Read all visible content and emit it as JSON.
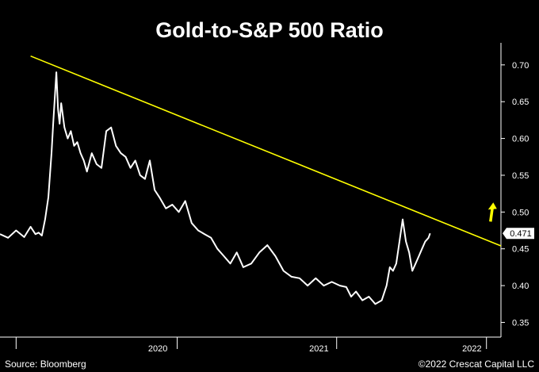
{
  "chart_data": {
    "type": "line",
    "title": "Gold-to-S&P 500 Ratio",
    "xlabel": "",
    "ylabel": "",
    "ylim": [
      0.33,
      0.73
    ],
    "y_ticks": [
      "0.70",
      "0.65",
      "0.60",
      "0.55",
      "0.50",
      "0.45",
      "0.40",
      "0.35"
    ],
    "y_tick_values": [
      0.7,
      0.65,
      0.6,
      0.55,
      0.5,
      0.45,
      0.4,
      0.35
    ],
    "x_labels": [
      "2020",
      "2021",
      "2022"
    ],
    "x_label_positions": [
      2020.45,
      2021.45,
      2022.4
    ],
    "x_range": [
      2019.47,
      2022.58
    ],
    "year_boundaries": [
      2019.57,
      2020.57,
      2021.56,
      2022.49
    ],
    "series": [
      {
        "name": "Gold-to-S&P 500 Ratio",
        "color": "#ffffff",
        "x": [
          2019.47,
          2019.52,
          2019.57,
          2019.62,
          2019.66,
          2019.69,
          2019.71,
          2019.73,
          2019.75,
          2019.77,
          2019.79,
          2019.8,
          2019.81,
          2019.82,
          2019.83,
          2019.84,
          2019.85,
          2019.87,
          2019.89,
          2019.91,
          2019.93,
          2019.95,
          2019.97,
          2019.99,
          2020.01,
          2020.04,
          2020.07,
          2020.1,
          2020.13,
          2020.16,
          2020.19,
          2020.22,
          2020.25,
          2020.28,
          2020.31,
          2020.34,
          2020.37,
          2020.4,
          2020.43,
          2020.46,
          2020.5,
          2020.54,
          2020.58,
          2020.62,
          2020.66,
          2020.7,
          2020.74,
          2020.78,
          2020.82,
          2020.86,
          2020.9,
          2020.94,
          2020.98,
          2021.03,
          2021.08,
          2021.13,
          2021.18,
          2021.23,
          2021.28,
          2021.33,
          2021.38,
          2021.43,
          2021.48,
          2021.53,
          2021.58,
          2021.62,
          2021.65,
          2021.68,
          2021.72,
          2021.76,
          2021.8,
          2021.84,
          2021.87,
          2021.89,
          2021.91,
          2021.93,
          2021.95,
          2021.97,
          2021.99,
          2022.01,
          2022.03,
          2022.05,
          2022.07,
          2022.09,
          2022.11,
          2022.13,
          2022.14
        ],
        "values": [
          0.47,
          0.465,
          0.475,
          0.466,
          0.48,
          0.47,
          0.472,
          0.468,
          0.49,
          0.52,
          0.58,
          0.62,
          0.655,
          0.69,
          0.64,
          0.62,
          0.648,
          0.615,
          0.6,
          0.61,
          0.59,
          0.595,
          0.58,
          0.57,
          0.555,
          0.58,
          0.565,
          0.56,
          0.61,
          0.615,
          0.59,
          0.58,
          0.575,
          0.56,
          0.57,
          0.55,
          0.545,
          0.57,
          0.53,
          0.52,
          0.505,
          0.51,
          0.5,
          0.515,
          0.485,
          0.475,
          0.47,
          0.465,
          0.45,
          0.44,
          0.43,
          0.445,
          0.425,
          0.43,
          0.445,
          0.455,
          0.44,
          0.42,
          0.412,
          0.41,
          0.4,
          0.41,
          0.4,
          0.405,
          0.4,
          0.398,
          0.385,
          0.392,
          0.38,
          0.385,
          0.375,
          0.38,
          0.4,
          0.425,
          0.42,
          0.43,
          0.46,
          0.49,
          0.46,
          0.445,
          0.42,
          0.43,
          0.44,
          0.45,
          0.46,
          0.465,
          0.471
        ]
      },
      {
        "name": "Trend line",
        "color": "#ffff00",
        "x": [
          2019.66,
          2022.58
        ],
        "values": [
          0.712,
          0.454
        ]
      }
    ],
    "last_value_label": "0.471",
    "last_value": 0.471,
    "annotations": [
      {
        "type": "arrow",
        "direction": "up",
        "color": "#ffff00",
        "x": 2022.52,
        "y_from": 0.487,
        "y_to": 0.513
      }
    ],
    "footer": {
      "source": "Source: Bloomberg",
      "copyright": "©2022 Crescat Capital LLC"
    },
    "colors": {
      "background": "#000000",
      "line": "#ffffff",
      "trend": "#ffff00",
      "axis": "#ffffff"
    }
  }
}
